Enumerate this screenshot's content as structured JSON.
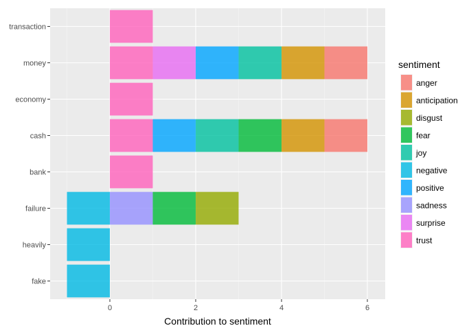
{
  "chart_data": {
    "type": "bar",
    "orientation": "horizontal",
    "stacked": true,
    "xlabel": "Contribution to sentiment",
    "ylabel": "",
    "xlim": [
      -1.2,
      6.35
    ],
    "xticks": [
      0,
      2,
      4,
      6
    ],
    "grid": true,
    "legend_position": "right",
    "legend_title": "sentiment",
    "categories": [
      "transaction",
      "money",
      "economy",
      "cash",
      "bank",
      "failure",
      "heavily",
      "fake"
    ],
    "sentiments": [
      {
        "name": "anger",
        "color": "#F8766D"
      },
      {
        "name": "anticipation",
        "color": "#D39200"
      },
      {
        "name": "disgust",
        "color": "#93AA00"
      },
      {
        "name": "fear",
        "color": "#00BA38"
      },
      {
        "name": "joy",
        "color": "#00C19F"
      },
      {
        "name": "negative",
        "color": "#00B9E3"
      },
      {
        "name": "positive",
        "color": "#00A5FF"
      },
      {
        "name": "sadness",
        "color": "#9590FF"
      },
      {
        "name": "surprise",
        "color": "#E76BF3"
      },
      {
        "name": "trust",
        "color": "#FF62BC"
      }
    ],
    "bars": [
      {
        "category": "transaction",
        "segments": [
          {
            "sentiment": "trust",
            "value": 1
          }
        ]
      },
      {
        "category": "money",
        "segments": [
          {
            "sentiment": "trust",
            "value": 1
          },
          {
            "sentiment": "surprise",
            "value": 1
          },
          {
            "sentiment": "positive",
            "value": 1
          },
          {
            "sentiment": "joy",
            "value": 1
          },
          {
            "sentiment": "anticipation",
            "value": 1
          },
          {
            "sentiment": "anger",
            "value": 1
          }
        ]
      },
      {
        "category": "economy",
        "segments": [
          {
            "sentiment": "trust",
            "value": 1
          }
        ]
      },
      {
        "category": "cash",
        "segments": [
          {
            "sentiment": "trust",
            "value": 1
          },
          {
            "sentiment": "positive",
            "value": 1
          },
          {
            "sentiment": "joy",
            "value": 1
          },
          {
            "sentiment": "fear",
            "value": 1
          },
          {
            "sentiment": "anticipation",
            "value": 1
          },
          {
            "sentiment": "anger",
            "value": 1
          }
        ]
      },
      {
        "category": "bank",
        "segments": [
          {
            "sentiment": "trust",
            "value": 1
          }
        ]
      },
      {
        "category": "failure",
        "segments": [
          {
            "sentiment": "negative",
            "value": -1
          },
          {
            "sentiment": "sadness",
            "value": 1
          },
          {
            "sentiment": "fear",
            "value": 1
          },
          {
            "sentiment": "disgust",
            "value": 1
          }
        ]
      },
      {
        "category": "heavily",
        "segments": [
          {
            "sentiment": "negative",
            "value": -1
          }
        ]
      },
      {
        "category": "fake",
        "segments": [
          {
            "sentiment": "negative",
            "value": -1
          }
        ]
      }
    ]
  }
}
